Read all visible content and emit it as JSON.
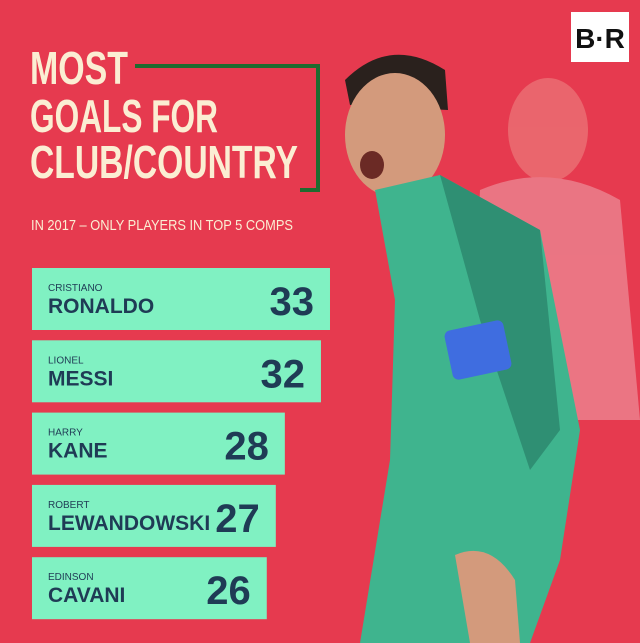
{
  "logo": "B·R",
  "chart_data": {
    "type": "bar",
    "title": [
      "MOST",
      "GOALS FOR",
      "CLUB/COUNTRY"
    ],
    "subtitle": "IN 2017 – ONLY PLAYERS IN TOP 5 COMPS",
    "first_names": [
      "CRISTIANO",
      "LIONEL",
      "HARRY",
      "ROBERT",
      "EDINSON"
    ],
    "categories": [
      "RONALDO",
      "MESSI",
      "KANE",
      "LEWANDOWSKI",
      "CAVANI"
    ],
    "values": [
      33,
      32,
      28,
      27,
      26
    ],
    "color": "#80f1c2"
  }
}
